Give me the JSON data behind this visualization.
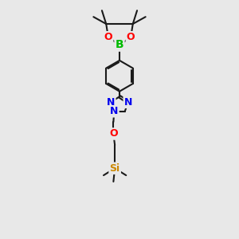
{
  "bg_color": "#e8e8e8",
  "bond_color": "#1a1a1a",
  "bond_width": 1.5,
  "atom_colors": {
    "B": "#00bb00",
    "O": "#ff0000",
    "N": "#0000ee",
    "Si": "#cc8800"
  },
  "fig_width": 3.0,
  "fig_height": 3.0,
  "dpi": 100,
  "xlim": [
    0,
    10
  ],
  "ylim": [
    0,
    17
  ]
}
